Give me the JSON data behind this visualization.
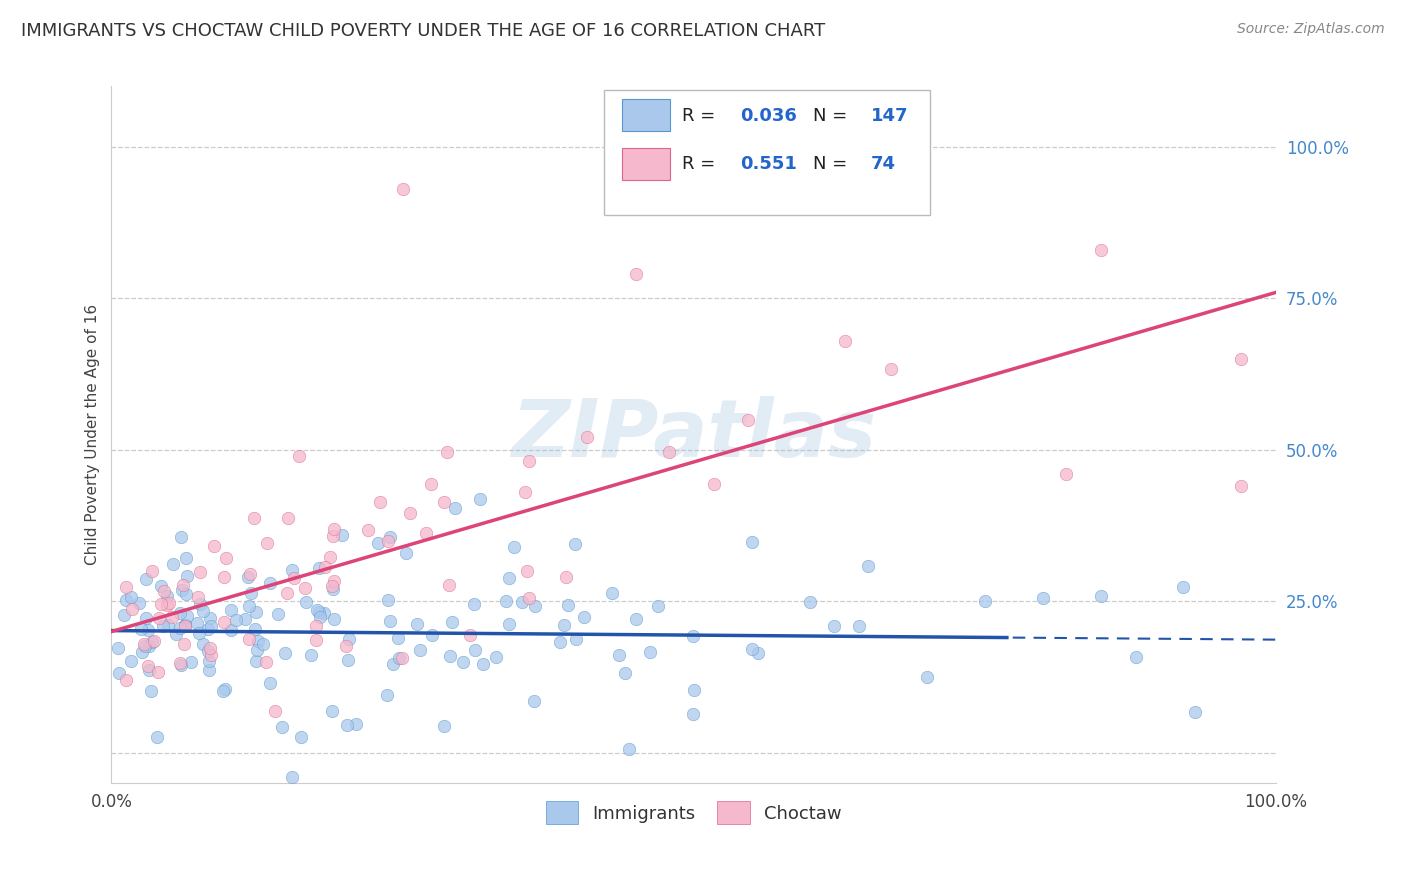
{
  "title": "IMMIGRANTS VS CHOCTAW CHILD POVERTY UNDER THE AGE OF 16 CORRELATION CHART",
  "source": "Source: ZipAtlas.com",
  "ylabel": "Child Poverty Under the Age of 16",
  "xlim": [
    0.0,
    1.0
  ],
  "ylim": [
    -0.05,
    1.1
  ],
  "background_color": "#ffffff",
  "watermark": "ZIPatlas",
  "immigrants": {
    "R": 0.036,
    "N": 147,
    "color": "#aac8ec",
    "edge_color": "#5599cc",
    "line_color": "#2255aa",
    "label": "Immigrants"
  },
  "choctaw": {
    "R": 0.551,
    "N": 74,
    "color": "#f5b8cc",
    "edge_color": "#dd6688",
    "line_color": "#dd4477",
    "label": "Choctaw"
  },
  "grid_color": "#cccccc",
  "grid_linestyle": "--",
  "title_fontsize": 13,
  "label_fontsize": 11,
  "tick_fontsize": 12,
  "tick_color": "#4488cc",
  "legend_r_color": "#2266cc",
  "legend_n_color": "#2266cc"
}
